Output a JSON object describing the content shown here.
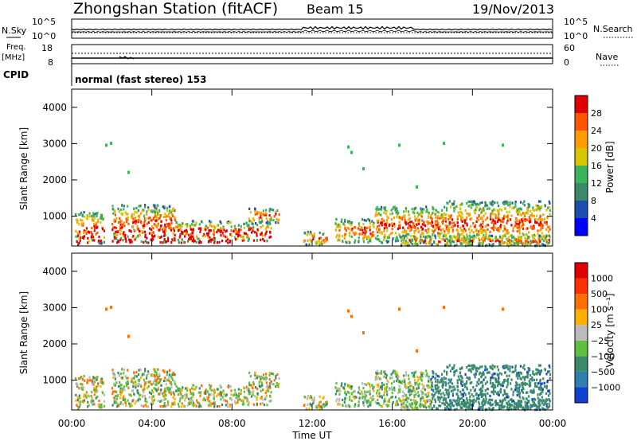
{
  "header": {
    "title": "Zhongshan Station (fitACF)",
    "beam": "Beam 15",
    "date": "19/Nov/2013"
  },
  "sky_panel": {
    "left_label": "N.Sky",
    "right_label": "N.Search",
    "left_ticks": [
      "10^5",
      "10^0"
    ],
    "right_ticks": [
      "10^5",
      "10^0"
    ]
  },
  "freq_panel": {
    "left_label_1": "Freq.",
    "left_label_2": "[MHz]",
    "right_label": "Nave",
    "left_ticks": [
      "18",
      "8"
    ],
    "right_ticks": [
      "60",
      "0"
    ]
  },
  "cpid": {
    "label": "CPID",
    "text": "normal (fast stereo) 153"
  },
  "colors": {
    "power_scale": [
      "#0000ff",
      "#1b4eb0",
      "#3a8a6a",
      "#3bb55b",
      "#d9c400",
      "#ff9d00",
      "#ff5500",
      "#e00000"
    ],
    "velocity_scale": [
      "#1040d0",
      "#2e7fb0",
      "#3a8a6a",
      "#5fc040",
      "#bbbbbb",
      "#ffb000",
      "#ff7000",
      "#ff3000",
      "#e00000"
    ]
  },
  "chart_data": [
    {
      "type": "heatmap",
      "title": "",
      "xlabel": "Time UT",
      "ylabel": "Slant Range [km]",
      "x_ticks": [
        "00:00",
        "04:00",
        "08:00",
        "12:00",
        "16:00",
        "20:00",
        "00:00"
      ],
      "y_ticks": [
        "1000",
        "2000",
        "3000",
        "4000"
      ],
      "ylim": [
        180,
        4500
      ],
      "colorbar": {
        "label": "Power [dB]",
        "ticks": [
          "4",
          "8",
          "12",
          "16",
          "20",
          "24",
          "28"
        ],
        "range": [
          0,
          30
        ]
      }
    },
    {
      "type": "heatmap",
      "title": "",
      "xlabel": "Time UT",
      "ylabel": "Slant Range [km]",
      "x_ticks": [
        "00:00",
        "04:00",
        "08:00",
        "12:00",
        "16:00",
        "20:00",
        "00:00"
      ],
      "y_ticks": [
        "1000",
        "2000",
        "3000",
        "4000"
      ],
      "ylim": [
        180,
        4500
      ],
      "colorbar": {
        "label": "Velocity [m s⁻¹]",
        "ticks": [
          "1000",
          "500",
          "100",
          "25",
          "−25",
          "−100",
          "−500",
          "−1000"
        ]
      }
    }
  ]
}
